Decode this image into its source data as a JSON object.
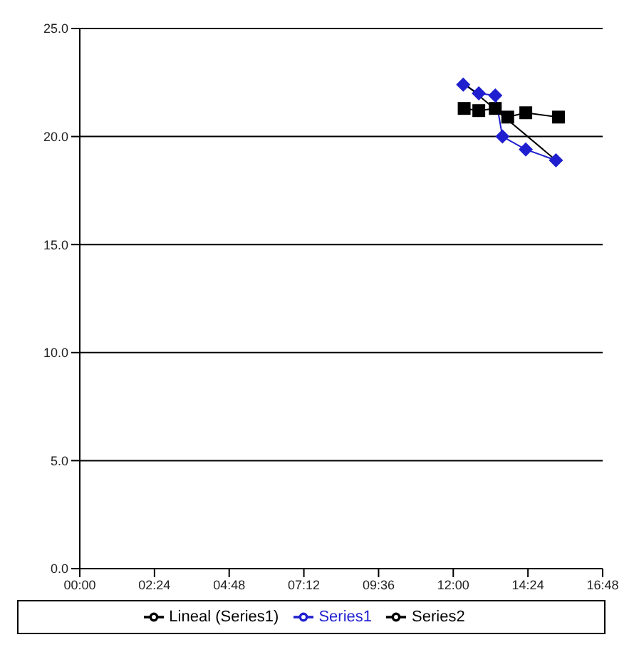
{
  "chart_data": {
    "type": "line",
    "xlim": [
      0,
      16.8
    ],
    "xticks": [
      {
        "value": 0,
        "label": "00:00"
      },
      {
        "value": 2.4,
        "label": "02:24"
      },
      {
        "value": 4.8,
        "label": "04:48"
      },
      {
        "value": 7.2,
        "label": "07:12"
      },
      {
        "value": 9.6,
        "label": "09:36"
      },
      {
        "value": 12,
        "label": "12:00"
      },
      {
        "value": 14.4,
        "label": "14:24"
      },
      {
        "value": 16.8,
        "label": "16:48"
      }
    ],
    "ylim": [
      0,
      25
    ],
    "yticks": [
      {
        "value": 0,
        "label": "0.0"
      },
      {
        "value": 5,
        "label": "5.0"
      },
      {
        "value": 10,
        "label": "10.0"
      },
      {
        "value": 15,
        "label": "15.0"
      },
      {
        "value": 20,
        "label": "20.0"
      },
      {
        "value": 25,
        "label": "25.0"
      }
    ],
    "grid": "y",
    "legend": "bottom",
    "series": [
      {
        "name": "Series2",
        "color": "#000000",
        "marker": "square",
        "x": [
          12.35,
          12.82,
          13.35,
          13.75,
          14.33,
          15.38
        ],
        "values": [
          21.3,
          21.2,
          21.3,
          20.9,
          21.1,
          20.9
        ]
      },
      {
        "name": "Series1",
        "color": "#1f1fd0",
        "marker": "diamond",
        "x": [
          12.32,
          12.82,
          13.35,
          13.58,
          14.33,
          15.3
        ],
        "values": [
          22.4,
          22.0,
          21.9,
          20.0,
          19.4,
          18.9
        ]
      },
      {
        "name": "Lineal (Series1)",
        "color": "#000000",
        "marker": "none",
        "x": [
          12.32,
          15.3
        ],
        "values": [
          22.5,
          18.9
        ]
      }
    ]
  }
}
